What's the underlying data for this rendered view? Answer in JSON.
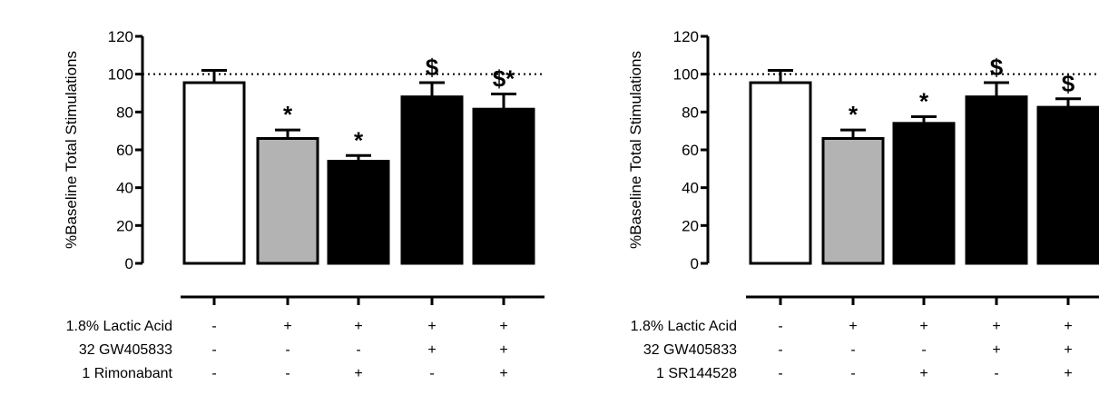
{
  "chart_data": [
    {
      "type": "bar",
      "ylabel": "%Baseline Total Stimulations",
      "ylim": [
        0,
        120
      ],
      "yticks": [
        "0",
        "20",
        "40",
        "60",
        "80",
        "100",
        "120"
      ],
      "reference_line": 100,
      "values": [
        95.5,
        66,
        54,
        88,
        81.5
      ],
      "errors": [
        6.5,
        4.5,
        3,
        7.5,
        8
      ],
      "fills": [
        "#ffffff",
        "#b3b3b3",
        "#000000",
        "#000000",
        "#000000"
      ],
      "markers": [
        "",
        "*",
        "*",
        "$",
        "$*"
      ],
      "conditions": [
        {
          "label": "1.8% Lactic Acid",
          "signs": [
            "-",
            "+",
            "+",
            "+",
            "+"
          ]
        },
        {
          "label": "32 GW405833",
          "signs": [
            "-",
            "-",
            "-",
            "+",
            "+"
          ]
        },
        {
          "label": "1 Rimonabant",
          "signs": [
            "-",
            "-",
            "+",
            "-",
            "+"
          ]
        }
      ]
    },
    {
      "type": "bar",
      "ylabel": "%Baseline Total Stimulations",
      "ylim": [
        0,
        120
      ],
      "yticks": [
        "0",
        "20",
        "40",
        "60",
        "80",
        "100",
        "120"
      ],
      "reference_line": 100,
      "values": [
        95.5,
        66,
        74,
        88,
        82.5
      ],
      "errors": [
        6.5,
        4.5,
        3.5,
        7.5,
        4.5
      ],
      "fills": [
        "#ffffff",
        "#b3b3b3",
        "#000000",
        "#000000",
        "#000000"
      ],
      "markers": [
        "",
        "*",
        "*",
        "$",
        "$"
      ],
      "conditions": [
        {
          "label": "1.8% Lactic Acid",
          "signs": [
            "-",
            "+",
            "+",
            "+",
            "+"
          ]
        },
        {
          "label": "32 GW405833",
          "signs": [
            "-",
            "-",
            "-",
            "+",
            "+"
          ]
        },
        {
          "label": "1 SR144528",
          "signs": [
            "-",
            "-",
            "+",
            "-",
            "+"
          ]
        }
      ]
    }
  ]
}
